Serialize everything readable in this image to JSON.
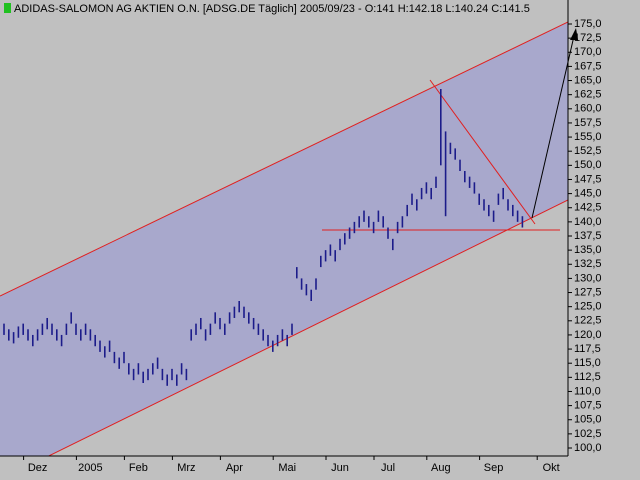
{
  "chart_data": {
    "type": "hlbar",
    "title": "ADIDAS-SALOMON AG AKTIEN O.N. [ADSG.DE  Täglich] 2005/09/23 - O:141 H:142.18 L:140.24 C:141.5",
    "color": "#1c1c8a",
    "categories": [
      null,
      null,
      null,
      null,
      null,
      null,
      null,
      "Dez",
      null,
      null,
      null,
      null,
      null,
      null,
      null,
      null,
      null,
      null,
      "2005",
      null,
      null,
      null,
      null,
      null,
      null,
      null,
      null,
      null,
      "Feb",
      null,
      null,
      null,
      null,
      null,
      null,
      null,
      null,
      null,
      "Mrz",
      null,
      null,
      null,
      null,
      null,
      null,
      null,
      null,
      null,
      "Apr",
      null,
      null,
      null,
      null,
      null,
      null,
      null,
      null,
      null,
      null,
      "Mai",
      null,
      null,
      null,
      null,
      null,
      null,
      null,
      null,
      null,
      null,
      "Jun",
      null,
      null,
      null,
      null,
      null,
      null,
      null,
      null,
      null,
      "Jul",
      null,
      null,
      null,
      null,
      null,
      null,
      null,
      null,
      null,
      null,
      "Aug",
      null,
      null,
      null,
      null,
      null,
      null,
      null,
      null,
      null,
      null,
      "Sep",
      null,
      null,
      null,
      null,
      null,
      null,
      null,
      null,
      null,
      null,
      null,
      "Okt",
      null
    ],
    "high": [
      122,
      121,
      120.5,
      121.5,
      122,
      121,
      120,
      121,
      122,
      123,
      122,
      121,
      120,
      122,
      124,
      122,
      121,
      122,
      121,
      120,
      119,
      118,
      119,
      117,
      116,
      117,
      115,
      114,
      115,
      113.5,
      114,
      115,
      116,
      114,
      113,
      114,
      113,
      115,
      114,
      121,
      122,
      123,
      121,
      122,
      124,
      123,
      122,
      124,
      125,
      126,
      125,
      124,
      123,
      122,
      121,
      120,
      119,
      120,
      121,
      120,
      122,
      132,
      130,
      129,
      128,
      130,
      134,
      135,
      136,
      135,
      137,
      138,
      139,
      140,
      141,
      142,
      141,
      140,
      142,
      141,
      139,
      137,
      140,
      141,
      143,
      145,
      144,
      146,
      147,
      146,
      148,
      163.5,
      156,
      154,
      153,
      151,
      149,
      148,
      147,
      145,
      144,
      143,
      142,
      145,
      146,
      144,
      143,
      142,
      141,
      null,
      null,
      null,
      null,
      null,
      null,
      null
    ],
    "low": [
      120,
      119,
      118.5,
      119.5,
      120,
      119,
      118,
      119,
      120,
      121,
      120,
      119,
      118,
      120,
      122,
      120,
      119,
      120,
      119,
      118,
      117,
      116,
      117,
      115,
      114,
      115,
      113,
      112,
      113,
      111.5,
      112,
      113,
      114,
      112,
      111,
      112,
      111,
      113,
      112,
      119,
      120,
      121,
      119,
      120,
      122,
      121,
      120,
      122,
      123,
      124,
      123,
      122,
      121,
      120,
      119,
      118,
      117,
      118,
      119,
      118,
      120,
      130,
      128,
      127,
      126,
      128,
      132,
      133,
      134,
      133,
      135,
      136,
      137,
      138,
      139,
      140,
      139,
      138,
      140,
      139,
      137,
      135,
      138,
      139,
      141,
      143,
      142,
      144,
      145,
      144,
      146,
      150,
      141,
      152,
      151,
      149,
      147,
      146,
      145,
      143,
      142,
      141,
      140,
      143,
      144,
      142,
      141,
      140,
      139,
      null,
      null,
      null,
      null,
      null,
      null,
      null
    ],
    "ylim": [
      100,
      175
    ],
    "yticks": [
      {
        "value": 175,
        "label": "175,0"
      },
      {
        "value": 172.5,
        "label": "172,5"
      },
      {
        "value": 170,
        "label": "170,0"
      },
      {
        "value": 167.5,
        "label": "167,5"
      },
      {
        "value": 165,
        "label": "165,0"
      },
      {
        "value": 162.5,
        "label": "162,5"
      },
      {
        "value": 160,
        "label": "160,0"
      },
      {
        "value": 157.5,
        "label": "157,5"
      },
      {
        "value": 155,
        "label": "155,0"
      },
      {
        "value": 152.5,
        "label": "152,5"
      },
      {
        "value": 150,
        "label": "150,0"
      },
      {
        "value": 147.5,
        "label": "147,5"
      },
      {
        "value": 145,
        "label": "145,0"
      },
      {
        "value": 142.5,
        "label": "142,5"
      },
      {
        "value": 140,
        "label": "140,0"
      },
      {
        "value": 137.5,
        "label": "137,5"
      },
      {
        "value": 135,
        "label": "135,0"
      },
      {
        "value": 132.5,
        "label": "132,5"
      },
      {
        "value": 130,
        "label": "130,0"
      },
      {
        "value": 127.5,
        "label": "127,5"
      },
      {
        "value": 125,
        "label": "125,0"
      },
      {
        "value": 122.5,
        "label": "122,5"
      },
      {
        "value": 120,
        "label": "120,0"
      },
      {
        "value": 117.5,
        "label": "117,5"
      },
      {
        "value": 115,
        "label": "115,0"
      },
      {
        "value": 112.5,
        "label": "112,5"
      },
      {
        "value": 110,
        "label": "110,0"
      },
      {
        "value": 107.5,
        "label": "107,5"
      },
      {
        "value": 105,
        "label": "105,0"
      },
      {
        "value": 102.5,
        "label": "102,5"
      },
      {
        "value": 100,
        "label": "100,0"
      }
    ]
  }
}
